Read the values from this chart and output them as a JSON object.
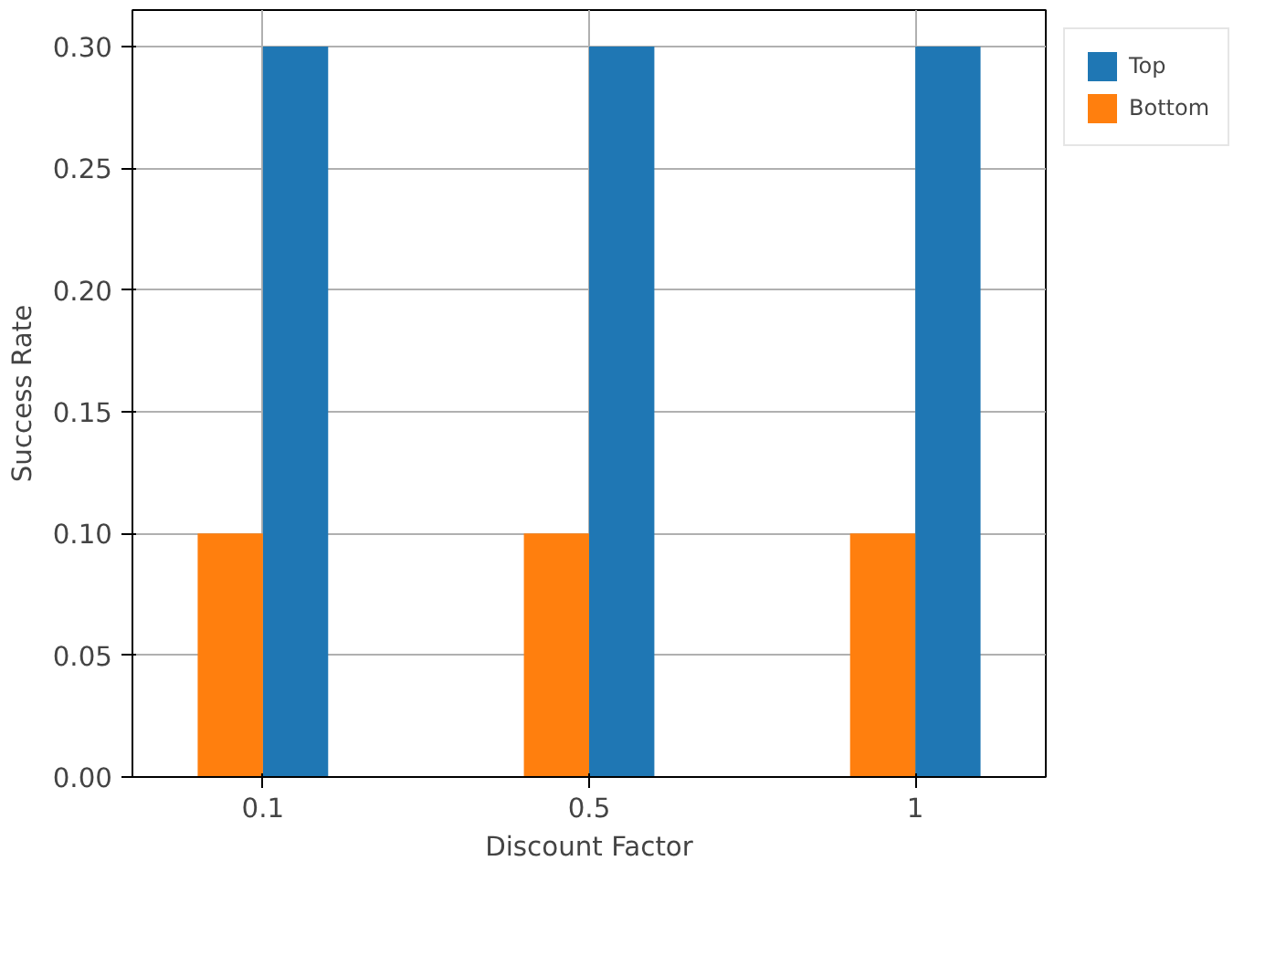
{
  "chart_data": {
    "type": "bar",
    "xlabel": "Discount Factor",
    "ylabel": "Success Rate",
    "categories": [
      "0.1",
      "0.5",
      "1"
    ],
    "series": [
      {
        "name": "Top",
        "color": "#1f77b4",
        "values": [
          0.3,
          0.3,
          0.3
        ]
      },
      {
        "name": "Bottom",
        "color": "#ff7f0e",
        "values": [
          0.1,
          0.1,
          0.1
        ]
      }
    ],
    "ylim": [
      0,
      0.315
    ],
    "yticks": [
      {
        "value": 0,
        "label": "0.00"
      },
      {
        "value": 0.05,
        "label": "0.05"
      },
      {
        "value": 0.1,
        "label": "0.10"
      },
      {
        "value": 0.15,
        "label": "0.15"
      },
      {
        "value": 0.2,
        "label": "0.20"
      },
      {
        "value": 0.25,
        "label": "0.25"
      },
      {
        "value": 0.3,
        "label": "0.30"
      }
    ],
    "grid": true,
    "legend": "top right"
  }
}
